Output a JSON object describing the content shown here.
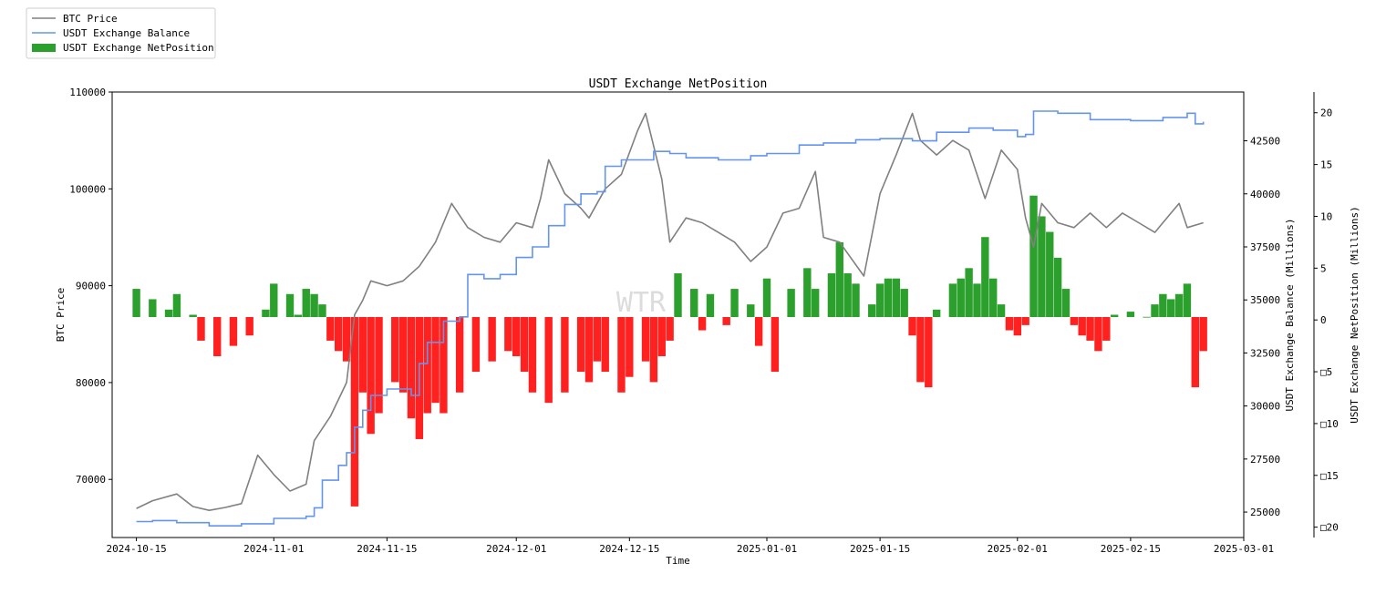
{
  "chart_data": {
    "type": "bar",
    "title": "USDT Exchange NetPosition",
    "watermark": "WTR",
    "xlabel": "Time",
    "ylabel_left": "BTC Price",
    "ylabel_right1": "USDT Exchange Balance (Millions)",
    "ylabel_right2": "USDT Exchange NetPosition (Millions)",
    "x_range": [
      "2024-10-12",
      "2025-03-01"
    ],
    "x_ticks": [
      "2024-10-15",
      "2024-11-01",
      "2024-11-15",
      "2024-12-01",
      "2024-12-15",
      "2025-01-01",
      "2025-01-15",
      "2025-02-01",
      "2025-02-15",
      "2025-03-01"
    ],
    "y_left_range": [
      64000,
      110000
    ],
    "y_left_ticks": [
      "70000",
      "80000",
      "90000",
      "100000",
      "110000"
    ],
    "y_right1_range": [
      23800,
      44800
    ],
    "y_right1_ticks": [
      "25000",
      "27500",
      "30000",
      "32500",
      "35000",
      "37500",
      "40000",
      "42500"
    ],
    "y_right2_range": [
      -21.0,
      22.0
    ],
    "y_right2_ticks": [
      {
        "v": 20,
        "label": "20"
      },
      {
        "v": 15,
        "label": "15"
      },
      {
        "v": 10,
        "label": "10"
      },
      {
        "v": 5,
        "label": "5"
      },
      {
        "v": 0,
        "label": "0"
      },
      {
        "v": -5,
        "label": "□5"
      },
      {
        "v": -10,
        "label": "□10"
      },
      {
        "v": -15,
        "label": "□15"
      },
      {
        "v": -20,
        "label": "□20"
      }
    ],
    "grid": false,
    "legend_position": "top-left",
    "colors": {
      "btc": "#808080",
      "balance": "#6495ED",
      "positive": "#2ca02c",
      "negative": "#ff2020"
    },
    "series": [
      {
        "name": "BTC Price",
        "type": "line",
        "points": [
          [
            "2024-10-15",
            67000
          ],
          [
            "2024-10-17",
            67800
          ],
          [
            "2024-10-20",
            68500
          ],
          [
            "2024-10-22",
            67200
          ],
          [
            "2024-10-24",
            66800
          ],
          [
            "2024-10-26",
            67100
          ],
          [
            "2024-10-28",
            67500
          ],
          [
            "2024-10-30",
            72500
          ],
          [
            "2024-11-01",
            70500
          ],
          [
            "2024-11-03",
            68800
          ],
          [
            "2024-11-05",
            69500
          ],
          [
            "2024-11-06",
            74000
          ],
          [
            "2024-11-08",
            76500
          ],
          [
            "2024-11-10",
            80000
          ],
          [
            "2024-11-11",
            87000
          ],
          [
            "2024-11-12",
            88500
          ],
          [
            "2024-11-13",
            90500
          ],
          [
            "2024-11-15",
            90000
          ],
          [
            "2024-11-17",
            90500
          ],
          [
            "2024-11-19",
            92000
          ],
          [
            "2024-11-21",
            94500
          ],
          [
            "2024-11-23",
            98500
          ],
          [
            "2024-11-25",
            96000
          ],
          [
            "2024-11-27",
            95000
          ],
          [
            "2024-11-29",
            94500
          ],
          [
            "2024-12-01",
            96500
          ],
          [
            "2024-12-03",
            96000
          ],
          [
            "2024-12-04",
            99000
          ],
          [
            "2024-12-05",
            103000
          ],
          [
            "2024-12-07",
            99500
          ],
          [
            "2024-12-09",
            98000
          ],
          [
            "2024-12-10",
            97000
          ],
          [
            "2024-12-12",
            100000
          ],
          [
            "2024-12-14",
            101500
          ],
          [
            "2024-12-16",
            106000
          ],
          [
            "2024-12-17",
            107800
          ],
          [
            "2024-12-19",
            101000
          ],
          [
            "2024-12-20",
            94500
          ],
          [
            "2024-12-22",
            97000
          ],
          [
            "2024-12-24",
            96500
          ],
          [
            "2024-12-26",
            95500
          ],
          [
            "2024-12-28",
            94500
          ],
          [
            "2024-12-30",
            92500
          ],
          [
            "2025-01-01",
            94000
          ],
          [
            "2025-01-03",
            97500
          ],
          [
            "2025-01-05",
            98000
          ],
          [
            "2025-01-07",
            101800
          ],
          [
            "2025-01-08",
            95000
          ],
          [
            "2025-01-10",
            94500
          ],
          [
            "2025-01-13",
            91000
          ],
          [
            "2025-01-15",
            99500
          ],
          [
            "2025-01-17",
            103500
          ],
          [
            "2025-01-19",
            107800
          ],
          [
            "2025-01-20",
            105000
          ],
          [
            "2025-01-22",
            103500
          ],
          [
            "2025-01-24",
            105000
          ],
          [
            "2025-01-26",
            104000
          ],
          [
            "2025-01-28",
            99000
          ],
          [
            "2025-01-30",
            104000
          ],
          [
            "2025-02-01",
            102000
          ],
          [
            "2025-02-02",
            97000
          ],
          [
            "2025-02-03",
            94000
          ],
          [
            "2025-02-04",
            98500
          ],
          [
            "2025-02-06",
            96500
          ],
          [
            "2025-02-08",
            96000
          ],
          [
            "2025-02-10",
            97500
          ],
          [
            "2025-02-12",
            96000
          ],
          [
            "2025-02-14",
            97500
          ],
          [
            "2025-02-16",
            96500
          ],
          [
            "2025-02-18",
            95500
          ],
          [
            "2025-02-20",
            97500
          ],
          [
            "2025-02-21",
            98500
          ],
          [
            "2025-02-22",
            96000
          ],
          [
            "2025-02-24",
            96500
          ]
        ]
      },
      {
        "name": "USDT Exchange Balance",
        "type": "step",
        "points": [
          [
            "2024-10-15",
            24550
          ],
          [
            "2024-10-17",
            24600
          ],
          [
            "2024-10-20",
            24500
          ],
          [
            "2024-10-24",
            24350
          ],
          [
            "2024-10-28",
            24450
          ],
          [
            "2024-11-01",
            24700
          ],
          [
            "2024-11-05",
            24800
          ],
          [
            "2024-11-06",
            25200
          ],
          [
            "2024-11-07",
            26500
          ],
          [
            "2024-11-09",
            27200
          ],
          [
            "2024-11-10",
            27800
          ],
          [
            "2024-11-11",
            29000
          ],
          [
            "2024-11-12",
            29800
          ],
          [
            "2024-11-13",
            30500
          ],
          [
            "2024-11-15",
            30800
          ],
          [
            "2024-11-18",
            30500
          ],
          [
            "2024-11-19",
            32000
          ],
          [
            "2024-11-20",
            33000
          ],
          [
            "2024-11-22",
            34000
          ],
          [
            "2024-11-24",
            34200
          ],
          [
            "2024-11-25",
            36200
          ],
          [
            "2024-11-27",
            36000
          ],
          [
            "2024-11-29",
            36200
          ],
          [
            "2024-12-01",
            37000
          ],
          [
            "2024-12-03",
            37500
          ],
          [
            "2024-12-05",
            38500
          ],
          [
            "2024-12-07",
            39500
          ],
          [
            "2024-12-09",
            40000
          ],
          [
            "2024-12-11",
            40100
          ],
          [
            "2024-12-12",
            41300
          ],
          [
            "2024-12-14",
            41600
          ],
          [
            "2024-12-16",
            41600
          ],
          [
            "2024-12-18",
            42000
          ],
          [
            "2024-12-20",
            41900
          ],
          [
            "2024-12-22",
            41700
          ],
          [
            "2024-12-26",
            41600
          ],
          [
            "2024-12-30",
            41800
          ],
          [
            "2025-01-01",
            41900
          ],
          [
            "2025-01-05",
            42300
          ],
          [
            "2025-01-08",
            42400
          ],
          [
            "2025-01-12",
            42550
          ],
          [
            "2025-01-15",
            42600
          ],
          [
            "2025-01-19",
            42500
          ],
          [
            "2025-01-22",
            42900
          ],
          [
            "2025-01-26",
            43100
          ],
          [
            "2025-01-29",
            43000
          ],
          [
            "2025-02-01",
            42700
          ],
          [
            "2025-02-02",
            42800
          ],
          [
            "2025-02-03",
            43900
          ],
          [
            "2025-02-06",
            43800
          ],
          [
            "2025-02-10",
            43500
          ],
          [
            "2025-02-15",
            43450
          ],
          [
            "2025-02-19",
            43600
          ],
          [
            "2025-02-22",
            43800
          ],
          [
            "2025-02-23",
            43300
          ],
          [
            "2025-02-24",
            43400
          ]
        ]
      },
      {
        "name": "USDT Exchange NetPosition",
        "type": "bar",
        "points": [
          [
            "2024-10-15",
            3.0
          ],
          [
            "2024-10-17",
            2.0
          ],
          [
            "2024-10-19",
            1.0
          ],
          [
            "2024-10-20",
            2.5
          ],
          [
            "2024-10-22",
            0.5
          ],
          [
            "2024-10-23",
            -2.0
          ],
          [
            "2024-10-25",
            -3.5
          ],
          [
            "2024-10-27",
            -2.5
          ],
          [
            "2024-10-29",
            -1.5
          ],
          [
            "2024-10-31",
            1.0
          ],
          [
            "2024-11-01",
            3.5
          ],
          [
            "2024-11-03",
            2.5
          ],
          [
            "2024-11-04",
            0.5
          ],
          [
            "2024-11-05",
            3.0
          ],
          [
            "2024-11-06",
            2.5
          ],
          [
            "2024-11-07",
            1.5
          ],
          [
            "2024-11-08",
            -2.0
          ],
          [
            "2024-11-09",
            -3.0
          ],
          [
            "2024-11-10",
            -4.0
          ],
          [
            "2024-11-11",
            -18.0
          ],
          [
            "2024-11-12",
            -7.0
          ],
          [
            "2024-11-13",
            -11.0
          ],
          [
            "2024-11-14",
            -9.0
          ],
          [
            "2024-11-16",
            -6.0
          ],
          [
            "2024-11-17",
            -7.0
          ],
          [
            "2024-11-18",
            -9.5
          ],
          [
            "2024-11-19",
            -11.5
          ],
          [
            "2024-11-20",
            -9.0
          ],
          [
            "2024-11-21",
            -8.0
          ],
          [
            "2024-11-22",
            -9.0
          ],
          [
            "2024-11-24",
            -7.0
          ],
          [
            "2024-11-26",
            -5.0
          ],
          [
            "2024-11-28",
            -4.0
          ],
          [
            "2024-11-30",
            -3.0
          ],
          [
            "2024-12-01",
            -3.5
          ],
          [
            "2024-12-02",
            -5.0
          ],
          [
            "2024-12-03",
            -7.0
          ],
          [
            "2024-12-05",
            -8.0
          ],
          [
            "2024-12-07",
            -7.0
          ],
          [
            "2024-12-09",
            -5.0
          ],
          [
            "2024-12-10",
            -6.0
          ],
          [
            "2024-12-11",
            -4.0
          ],
          [
            "2024-12-12",
            -5.0
          ],
          [
            "2024-12-14",
            -7.0
          ],
          [
            "2024-12-15",
            -5.5
          ],
          [
            "2024-12-17",
            -4.0
          ],
          [
            "2024-12-18",
            -6.0
          ],
          [
            "2024-12-19",
            -3.5
          ],
          [
            "2024-12-20",
            -2.0
          ],
          [
            "2024-12-21",
            4.5
          ],
          [
            "2024-12-23",
            3.0
          ],
          [
            "2024-12-24",
            -1.0
          ],
          [
            "2024-12-25",
            2.5
          ],
          [
            "2024-12-27",
            -0.5
          ],
          [
            "2024-12-28",
            3.0
          ],
          [
            "2024-12-30",
            1.5
          ],
          [
            "2024-12-31",
            -2.5
          ],
          [
            "2025-01-01",
            4.0
          ],
          [
            "2025-01-02",
            -5.0
          ],
          [
            "2025-01-04",
            3.0
          ],
          [
            "2025-01-06",
            5.0
          ],
          [
            "2025-01-07",
            3.0
          ],
          [
            "2025-01-09",
            4.5
          ],
          [
            "2025-01-10",
            7.5
          ],
          [
            "2025-01-11",
            4.5
          ],
          [
            "2025-01-12",
            3.5
          ],
          [
            "2025-01-14",
            1.5
          ],
          [
            "2025-01-15",
            3.5
          ],
          [
            "2025-01-16",
            4.0
          ],
          [
            "2025-01-17",
            4.0
          ],
          [
            "2025-01-18",
            3.0
          ],
          [
            "2025-01-19",
            -1.5
          ],
          [
            "2025-01-20",
            -6.0
          ],
          [
            "2025-01-21",
            -6.5
          ],
          [
            "2025-01-22",
            1.0
          ],
          [
            "2025-01-24",
            3.5
          ],
          [
            "2025-01-25",
            4.0
          ],
          [
            "2025-01-26",
            5.0
          ],
          [
            "2025-01-27",
            3.5
          ],
          [
            "2025-01-28",
            8.0
          ],
          [
            "2025-01-29",
            4.0
          ],
          [
            "2025-01-30",
            1.5
          ],
          [
            "2025-01-31",
            -1.0
          ],
          [
            "2025-02-01",
            -1.5
          ],
          [
            "2025-02-02",
            -0.5
          ],
          [
            "2025-02-03",
            12.0
          ],
          [
            "2025-02-04",
            10.0
          ],
          [
            "2025-02-05",
            8.5
          ],
          [
            "2025-02-06",
            6.0
          ],
          [
            "2025-02-07",
            3.0
          ],
          [
            "2025-02-08",
            -0.5
          ],
          [
            "2025-02-09",
            -1.5
          ],
          [
            "2025-02-10",
            -2.0
          ],
          [
            "2025-02-11",
            -3.0
          ],
          [
            "2025-02-12",
            -2.0
          ],
          [
            "2025-02-13",
            0.5
          ],
          [
            "2025-02-15",
            0.8
          ],
          [
            "2025-02-17",
            0.3
          ],
          [
            "2025-02-18",
            1.5
          ],
          [
            "2025-02-19",
            2.5
          ],
          [
            "2025-02-20",
            2.0
          ],
          [
            "2025-02-21",
            2.5
          ],
          [
            "2025-02-22",
            3.5
          ],
          [
            "2025-02-23",
            -6.5
          ],
          [
            "2025-02-24",
            -3.0
          ]
        ]
      }
    ]
  },
  "legend": [
    {
      "label": "BTC Price",
      "kind": "line",
      "color": "#808080"
    },
    {
      "label": "USDT Exchange Balance",
      "kind": "line",
      "color": "#6495ED"
    },
    {
      "label": "USDT Exchange NetPosition",
      "kind": "patch",
      "color": "#2ca02c"
    }
  ]
}
